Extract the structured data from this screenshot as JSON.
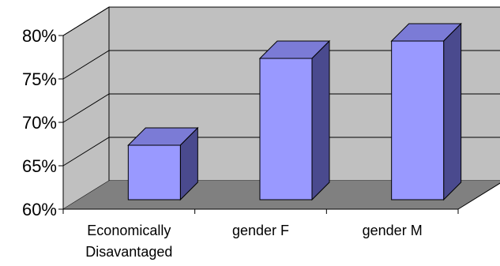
{
  "chart_data": {
    "type": "bar",
    "categories": [
      "Economically Disavantaged",
      "gender F",
      "gender M"
    ],
    "category_lines": [
      [
        "Economically",
        "Disavantaged"
      ],
      [
        "gender F"
      ],
      [
        "gender M"
      ]
    ],
    "values": [
      67,
      77,
      79
    ],
    "ylim": [
      60,
      80
    ],
    "yticks": [
      60,
      65,
      70,
      75,
      80
    ],
    "ytick_labels": [
      "60%",
      "65%",
      "70%",
      "75%",
      "80%"
    ],
    "grid": true,
    "style": "3d",
    "colors": {
      "bar_front": "#9999ff",
      "bar_top": "#7b7bd6",
      "bar_side": "#4a4a8e",
      "wall": "#c0c0c0",
      "floor": "#808080"
    }
  }
}
